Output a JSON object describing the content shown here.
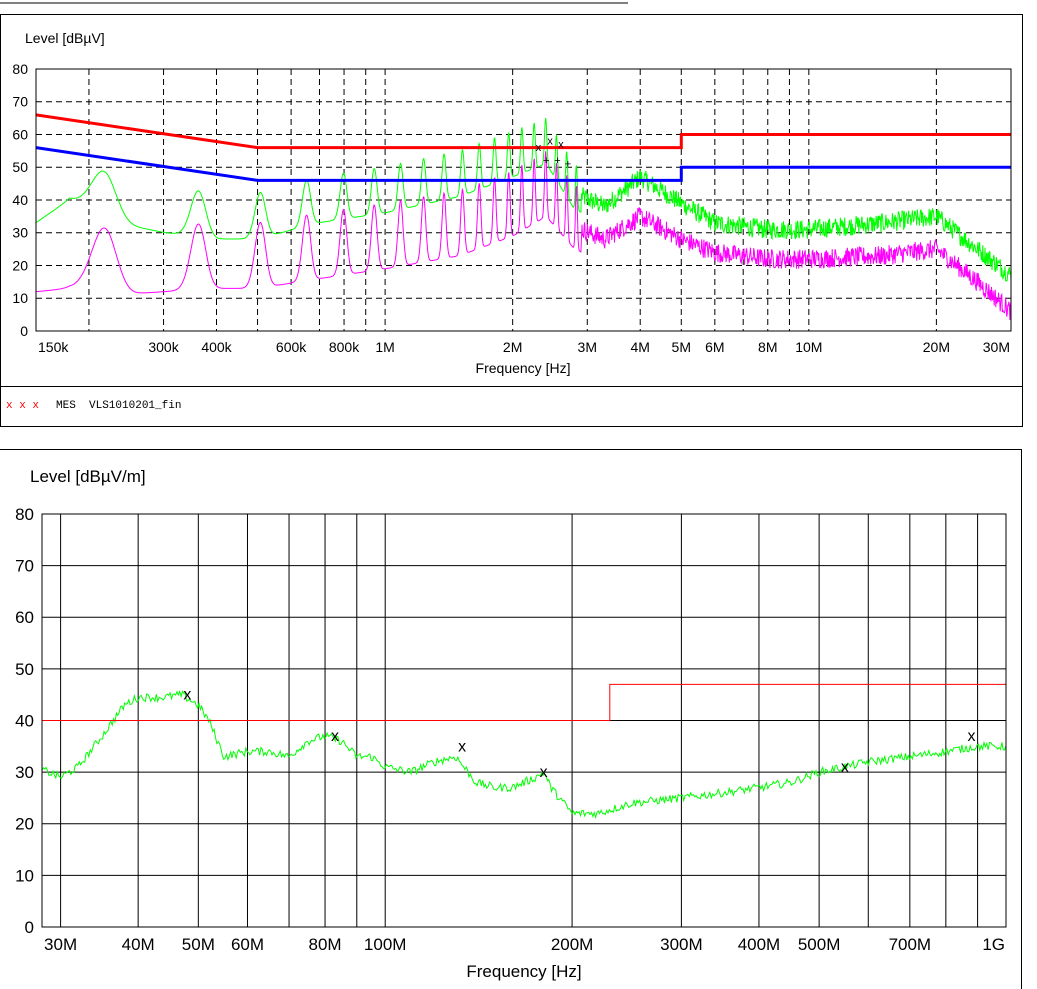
{
  "chart_data": [
    {
      "type": "line",
      "ylabel": "Level [dBµV]",
      "xlabel": "Frequency [Hz]",
      "x_scale": "log",
      "xlim": [
        150000,
        30000000
      ],
      "ylim": [
        0,
        80
      ],
      "y_ticks": [
        0,
        10,
        20,
        30,
        40,
        50,
        60,
        70,
        80
      ],
      "x_tick_labels": [
        {
          "value": 150000,
          "label": "150k"
        },
        {
          "value": 300000,
          "label": "300k"
        },
        {
          "value": 400000,
          "label": "400k"
        },
        {
          "value": 600000,
          "label": "600k"
        },
        {
          "value": 800000,
          "label": "800k"
        },
        {
          "value": 1000000,
          "label": "1M"
        },
        {
          "value": 2000000,
          "label": "2M"
        },
        {
          "value": 3000000,
          "label": "3M"
        },
        {
          "value": 4000000,
          "label": "4M"
        },
        {
          "value": 5000000,
          "label": "5M"
        },
        {
          "value": 6000000,
          "label": "6M"
        },
        {
          "value": 8000000,
          "label": "8M"
        },
        {
          "value": 10000000,
          "label": "10M"
        },
        {
          "value": 20000000,
          "label": "20M"
        },
        {
          "value": 30000000,
          "label": "30M"
        }
      ],
      "grid": true,
      "grid_style": "dashed",
      "limit_lines": [
        {
          "color": "#ff0000",
          "points": [
            [
              150000,
              66
            ],
            [
              500000,
              56
            ],
            [
              5000000,
              56
            ],
            [
              5000000,
              60
            ],
            [
              30000000,
              60
            ]
          ]
        },
        {
          "color": "#0000ff",
          "points": [
            [
              150000,
              56
            ],
            [
              500000,
              46
            ],
            [
              5000000,
              46
            ],
            [
              5000000,
              50
            ],
            [
              30000000,
              50
            ]
          ]
        }
      ],
      "series": [
        {
          "color": "#00ff00",
          "values_hint": "peak trace",
          "points": [
            [
              150000,
              38
            ],
            [
              180000,
              45
            ],
            [
              230000,
              38
            ],
            [
              300000,
              35
            ],
            [
              400000,
              33
            ],
            [
              500000,
              33
            ],
            [
              700000,
              38
            ],
            [
              1000000,
              41
            ],
            [
              1500000,
              46
            ],
            [
              2000000,
              52
            ],
            [
              2400000,
              56
            ],
            [
              2800000,
              42
            ],
            [
              3300000,
              38
            ],
            [
              4000000,
              47
            ],
            [
              5000000,
              39
            ],
            [
              6000000,
              33
            ],
            [
              8000000,
              31
            ],
            [
              10000000,
              31
            ],
            [
              15000000,
              33
            ],
            [
              20000000,
              35
            ],
            [
              25000000,
              25
            ],
            [
              30000000,
              17
            ]
          ]
        },
        {
          "color": "#ff00ff",
          "values_hint": "average trace",
          "points": [
            [
              150000,
              19
            ],
            [
              180000,
              20
            ],
            [
              230000,
              18
            ],
            [
              300000,
              19
            ],
            [
              400000,
              20
            ],
            [
              500000,
              20
            ],
            [
              700000,
              23
            ],
            [
              1000000,
              26
            ],
            [
              1500000,
              30
            ],
            [
              2000000,
              36
            ],
            [
              2400000,
              42
            ],
            [
              2800000,
              32
            ],
            [
              3300000,
              28
            ],
            [
              4000000,
              35
            ],
            [
              5000000,
              28
            ],
            [
              6000000,
              24
            ],
            [
              8000000,
              22
            ],
            [
              10000000,
              22
            ],
            [
              15000000,
              23
            ],
            [
              20000000,
              25
            ],
            [
              25000000,
              15
            ],
            [
              30000000,
              6
            ]
          ]
        }
      ],
      "peak_range": [
        150000,
        30000000
      ],
      "markers": [
        {
          "x": 2300000,
          "y": 56,
          "color": "#ff0000",
          "symbol": "x"
        },
        {
          "x": 2450000,
          "y": 58,
          "color": "#ff0000",
          "symbol": "x"
        },
        {
          "x": 2600000,
          "y": 57,
          "color": "#ff0000",
          "symbol": "x"
        },
        {
          "x": 2400000,
          "y": 52,
          "color": "#0000ff",
          "symbol": "+"
        },
        {
          "x": 2550000,
          "y": 52,
          "color": "#0000ff",
          "symbol": "+"
        },
        {
          "x": 2700000,
          "y": 51,
          "color": "#0000ff",
          "symbol": "+"
        }
      ],
      "legend_text": "MES  VLS1010201_fin",
      "legend_marks": "x x x"
    },
    {
      "type": "line",
      "ylabel": "Level [dBµV/m]",
      "xlabel": "Frequency [Hz]",
      "x_scale": "log",
      "xlim": [
        28000000,
        1000000000
      ],
      "ylim": [
        0,
        80
      ],
      "y_ticks": [
        0,
        10,
        20,
        30,
        40,
        50,
        60,
        70,
        80
      ],
      "x_tick_labels": [
        {
          "value": 30000000,
          "label": "30M"
        },
        {
          "value": 40000000,
          "label": "40M"
        },
        {
          "value": 50000000,
          "label": "50M"
        },
        {
          "value": 60000000,
          "label": "60M"
        },
        {
          "value": 80000000,
          "label": "80M"
        },
        {
          "value": 100000000,
          "label": "100M"
        },
        {
          "value": 200000000,
          "label": "200M"
        },
        {
          "value": 300000000,
          "label": "300M"
        },
        {
          "value": 400000000,
          "label": "400M"
        },
        {
          "value": 500000000,
          "label": "500M"
        },
        {
          "value": 700000000,
          "label": "700M"
        },
        {
          "value": 1000000000,
          "label": "1G"
        }
      ],
      "grid": true,
      "grid_style": "solid",
      "limit_lines": [
        {
          "color": "#ff0000",
          "points": [
            [
              28000000,
              40
            ],
            [
              230000000,
              40
            ],
            [
              230000000,
              47
            ],
            [
              1000000000,
              47
            ]
          ]
        }
      ],
      "series": [
        {
          "color": "#00ff00",
          "points": [
            [
              28000000,
              30.5
            ],
            [
              30000000,
              29
            ],
            [
              32000000,
              31
            ],
            [
              35000000,
              37
            ],
            [
              38000000,
              43
            ],
            [
              40000000,
              44.5
            ],
            [
              44000000,
              44.5
            ],
            [
              47000000,
              45
            ],
            [
              50000000,
              43
            ],
            [
              52000000,
              40
            ],
            [
              55000000,
              33
            ],
            [
              60000000,
              34
            ],
            [
              65000000,
              34
            ],
            [
              70000000,
              33
            ],
            [
              75000000,
              36
            ],
            [
              80000000,
              37
            ],
            [
              85000000,
              36
            ],
            [
              90000000,
              33
            ],
            [
              95000000,
              33
            ],
            [
              100000000,
              31
            ],
            [
              110000000,
              30
            ],
            [
              120000000,
              32
            ],
            [
              130000000,
              33
            ],
            [
              140000000,
              28
            ],
            [
              150000000,
              27
            ],
            [
              160000000,
              27
            ],
            [
              175000000,
              29
            ],
            [
              180000000,
              30
            ],
            [
              185000000,
              27
            ],
            [
              200000000,
              22
            ],
            [
              220000000,
              22
            ],
            [
              250000000,
              24
            ],
            [
              300000000,
              25
            ],
            [
              350000000,
              26
            ],
            [
              400000000,
              27
            ],
            [
              450000000,
              28
            ],
            [
              500000000,
              30
            ],
            [
              550000000,
              31
            ],
            [
              600000000,
              32
            ],
            [
              700000000,
              33
            ],
            [
              800000000,
              34
            ],
            [
              900000000,
              35
            ],
            [
              1000000000,
              35
            ]
          ]
        }
      ],
      "markers": [
        {
          "x": 48000000,
          "y": 45,
          "color": "#ff0000",
          "symbol": "x"
        },
        {
          "x": 83000000,
          "y": 37,
          "color": "#ff0000",
          "symbol": "x"
        },
        {
          "x": 133000000,
          "y": 35,
          "color": "#ff0000",
          "symbol": "x"
        },
        {
          "x": 180000000,
          "y": 30,
          "color": "#ff0000",
          "symbol": "x"
        },
        {
          "x": 550000000,
          "y": 31,
          "color": "#ff0000",
          "symbol": "x"
        },
        {
          "x": 880000000,
          "y": 37,
          "color": "#ff0000",
          "symbol": "x"
        }
      ]
    }
  ]
}
